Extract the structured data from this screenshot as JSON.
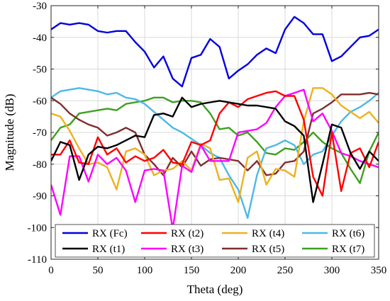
{
  "chart_data": {
    "type": "line",
    "title": "",
    "xlabel": "Theta (deg)",
    "ylabel": "Magnitude (dB)",
    "xlim": [
      0,
      350
    ],
    "ylim": [
      -110,
      -30
    ],
    "xticks": [
      0,
      50,
      100,
      150,
      200,
      250,
      300,
      350
    ],
    "yticks": [
      -110,
      -100,
      -90,
      -80,
      -70,
      -60,
      -50,
      -40,
      -30
    ],
    "grid": true,
    "legend": {
      "placement": "bottom",
      "columns": 4
    },
    "x": [
      0,
      10,
      20,
      30,
      40,
      50,
      60,
      70,
      80,
      90,
      100,
      110,
      120,
      130,
      140,
      150,
      160,
      170,
      180,
      190,
      200,
      210,
      220,
      230,
      240,
      250,
      260,
      270,
      280,
      290,
      300,
      310,
      320,
      330,
      340,
      350
    ],
    "series": [
      {
        "name": "RX (Fc)",
        "color": "#0000e0",
        "values": [
          -37.5,
          -35.5,
          -36,
          -35.5,
          -36,
          -38,
          -38.5,
          -38,
          -38,
          -41.5,
          -44.5,
          -49.5,
          -46,
          -53,
          -55.5,
          -46.5,
          -45.5,
          -40.5,
          -43,
          -53,
          -50.5,
          -48.5,
          -45.5,
          -43.5,
          -45,
          -37.5,
          -33.5,
          -35.5,
          -39,
          -39,
          -47.5,
          -46,
          -43,
          -40,
          -39.5,
          -37.5
        ]
      },
      {
        "name": "RX (t1)",
        "color": "#000000",
        "values": [
          -79,
          -73,
          -74,
          -85,
          -77,
          -74.5,
          -75,
          -74,
          -72.5,
          -71,
          -71.5,
          -64.5,
          -64,
          -65,
          -59,
          -62,
          -61,
          -60.5,
          -60,
          -60.5,
          -61,
          -61.5,
          -61.5,
          -62,
          -62.5,
          -66.5,
          -68,
          -71,
          -92,
          -80,
          -67.5,
          -68.5,
          -76.5,
          -81.5,
          -76,
          -79
        ]
      },
      {
        "name": "RX (t2)",
        "color": "#ff0000",
        "values": [
          -77,
          -77,
          -72.5,
          -79.5,
          -80,
          -71.5,
          -77,
          -75,
          -79.5,
          -77.5,
          -79,
          -78,
          -75.5,
          -79.5,
          -80,
          -73,
          -74,
          -72.5,
          -64,
          -60.5,
          -62,
          -59.5,
          -58.5,
          -57.5,
          -57,
          -58.5,
          -58.5,
          -66,
          -84,
          -90,
          -70,
          -88.5,
          -76.5,
          -75,
          -81,
          -73
        ]
      },
      {
        "name": "RX (t3)",
        "color": "#ff00ff",
        "values": [
          -86.5,
          -96,
          -77.5,
          -77.5,
          -85.5,
          -77,
          -80,
          -78,
          -82,
          -92,
          -82,
          -81.5,
          -82,
          -100.5,
          -80.5,
          -82.5,
          -74,
          -79,
          -79,
          -79,
          -70,
          -69.5,
          -69,
          -67,
          -62,
          -58.5,
          -57.5,
          -56.5,
          -66.5,
          -64,
          -69.5,
          -76.5,
          -77.5,
          -79,
          -80,
          -81
        ]
      },
      {
        "name": "RX (t4)",
        "color": "#edb120",
        "values": [
          -64,
          -65,
          -69.5,
          -75,
          -80,
          -79.5,
          -81,
          -88,
          -76,
          -75,
          -77,
          -83.5,
          -82,
          -81.5,
          -79,
          -82,
          -73.5,
          -75,
          -85,
          -84.5,
          -92,
          -78,
          -76,
          -86.5,
          -81.5,
          -82,
          -84,
          -66.5,
          -56,
          -56,
          -58,
          -61.5,
          -63.5,
          -65.5,
          -63.5,
          -67
        ]
      },
      {
        "name": "RX (t5)",
        "color": "#7e2f2f",
        "values": [
          -59,
          -61,
          -64,
          -66,
          -67.5,
          -68.5,
          -71,
          -70,
          -68.5,
          -70,
          -77,
          -80,
          -83.5,
          -78,
          -81,
          -76,
          -80.5,
          -78.5,
          -78,
          -78.5,
          -79,
          -82,
          -79,
          -83.5,
          -83,
          -79.5,
          -79,
          -76,
          -64,
          -62.5,
          -60.5,
          -58,
          -58,
          -58,
          -57.5,
          -58
        ]
      },
      {
        "name": "RX (t6)",
        "color": "#4db8e8",
        "values": [
          -59,
          -57,
          -56.5,
          -56,
          -56.5,
          -57,
          -58,
          -57.5,
          -59,
          -59.5,
          -61,
          -63.5,
          -66,
          -68.5,
          -70,
          -72,
          -74,
          -76.5,
          -78,
          -83.5,
          -88,
          -97,
          -83.5,
          -75,
          -74,
          -72.5,
          -74,
          -80,
          -77,
          -76,
          -71,
          -66.5,
          -63.5,
          -62,
          -60,
          -57.5
        ]
      },
      {
        "name": "RX (t7)",
        "color": "#3f9f1f",
        "values": [
          -72.5,
          -68.5,
          -67.5,
          -64,
          -63.5,
          -63,
          -62.5,
          -63,
          -61,
          -60.5,
          -60,
          -59,
          -59,
          -60.5,
          -60,
          -60,
          -60.5,
          -64,
          -69,
          -68.5,
          -71,
          -70,
          -73,
          -76.5,
          -77,
          -75,
          -75.5,
          -73,
          -70,
          -73,
          -75,
          -76.5,
          -81.5,
          -86,
          -76,
          -70
        ]
      }
    ]
  }
}
